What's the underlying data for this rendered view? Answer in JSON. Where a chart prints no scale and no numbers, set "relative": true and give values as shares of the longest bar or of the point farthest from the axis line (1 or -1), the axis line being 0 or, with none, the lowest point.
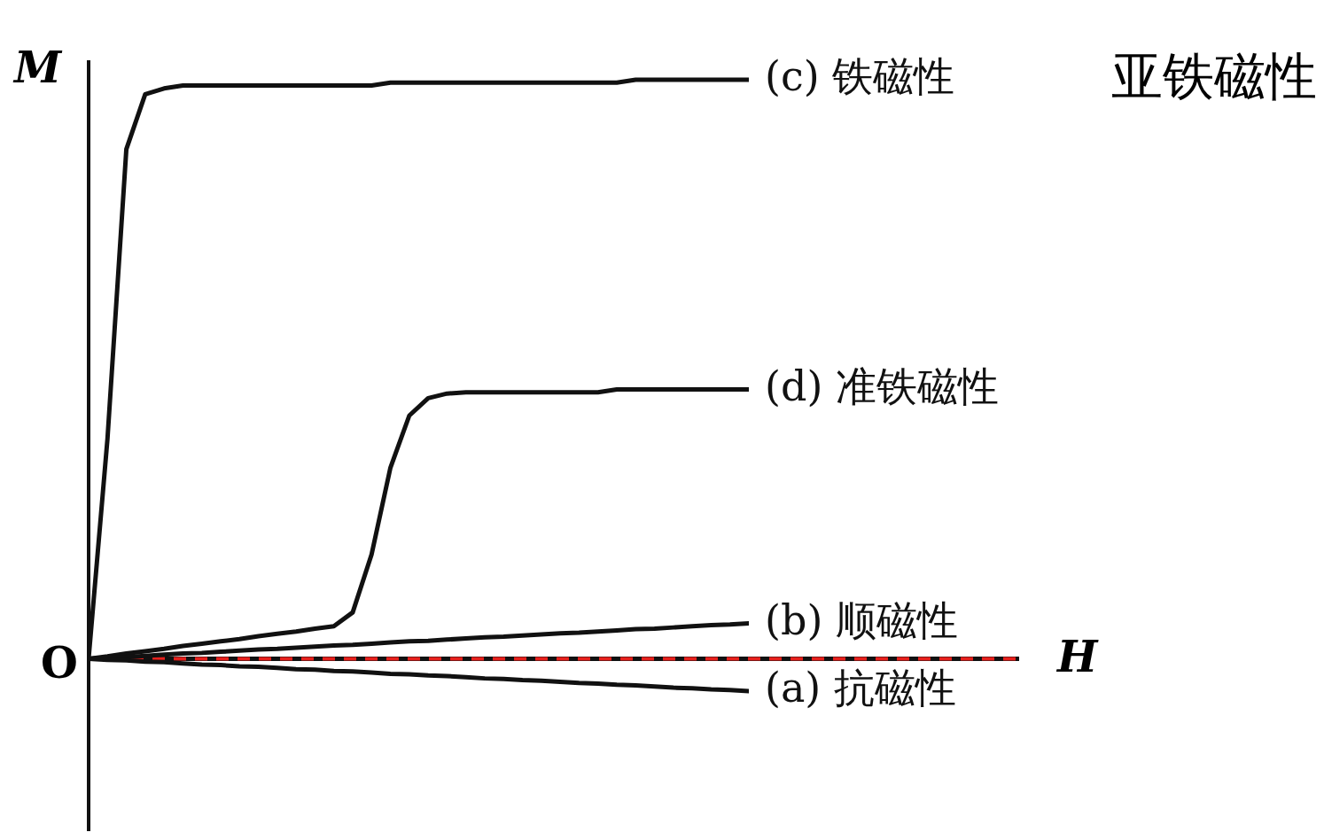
{
  "chart_data": {
    "type": "line",
    "relative": true,
    "ylabel": "M",
    "categories": [
      null,
      null,
      null,
      null,
      null,
      null,
      null,
      null,
      null,
      null,
      null,
      null,
      null,
      null,
      null,
      null,
      null,
      null,
      null,
      null,
      null,
      null,
      null,
      null,
      null,
      null,
      null,
      null,
      null,
      null,
      null,
      null,
      null,
      null,
      null,
      null
    ],
    "series": [
      {
        "name": "(c) 铁磁性",
        "color": "#111111",
        "values": [
          0,
          0.38,
          0.88,
          0.975,
          0.985,
          0.99,
          0.99,
          0.99,
          0.99,
          0.99,
          0.99,
          0.99,
          0.99,
          0.99,
          0.99,
          0.99,
          0.995,
          0.995,
          0.995,
          0.995,
          0.995,
          0.995,
          0.995,
          0.995,
          0.995,
          0.995,
          0.995,
          0.995,
          0.995,
          1,
          1,
          1,
          1,
          1,
          1,
          1
        ]
      },
      {
        "name": "(d) 准铁磁性",
        "color": "#111111",
        "values": [
          0,
          0.004,
          0.009,
          0.013,
          0.017,
          0.022,
          0.026,
          0.03,
          0.034,
          0.039,
          0.043,
          0.047,
          0.052,
          0.056,
          0.08,
          0.18,
          0.33,
          0.42,
          0.45,
          0.458,
          0.46,
          0.46,
          0.46,
          0.46,
          0.46,
          0.46,
          0.46,
          0.46,
          0.465,
          0.465,
          0.465,
          0.465,
          0.465,
          0.465,
          0.465,
          0.465
        ]
      },
      {
        "name": "(b) 顺磁性",
        "color": "#111111",
        "values": [
          0,
          0.002,
          0.003,
          0.005,
          0.007,
          0.009,
          0.01,
          0.012,
          0.014,
          0.016,
          0.017,
          0.019,
          0.021,
          0.023,
          0.024,
          0.026,
          0.028,
          0.03,
          0.031,
          0.033,
          0.035,
          0.037,
          0.038,
          0.04,
          0.042,
          0.044,
          0.045,
          0.047,
          0.049,
          0.051,
          0.052,
          0.054,
          0.056,
          0.058,
          0.059,
          0.061
        ]
      },
      {
        "name": "(a) 抗磁性",
        "color": "#111111",
        "values": [
          0,
          -0.002,
          -0.003,
          -0.005,
          -0.006,
          -0.008,
          -0.01,
          -0.011,
          -0.013,
          -0.014,
          -0.016,
          -0.018,
          -0.019,
          -0.021,
          -0.022,
          -0.024,
          -0.026,
          -0.027,
          -0.029,
          -0.03,
          -0.032,
          -0.034,
          -0.035,
          -0.037,
          -0.038,
          -0.04,
          -0.042,
          -0.043,
          -0.045,
          -0.046,
          -0.048,
          -0.05,
          -0.051,
          -0.053,
          -0.054,
          -0.056
        ]
      }
    ],
    "ref_lines": [
      {
        "axis": "y",
        "value": 0,
        "color": "#e8201c",
        "line_style": "dashed"
      }
    ],
    "annotations": [
      "O",
      "H",
      "亚铁磁性"
    ],
    "line_style": "solid",
    "marker": "none",
    "grid": false,
    "legend": false
  }
}
